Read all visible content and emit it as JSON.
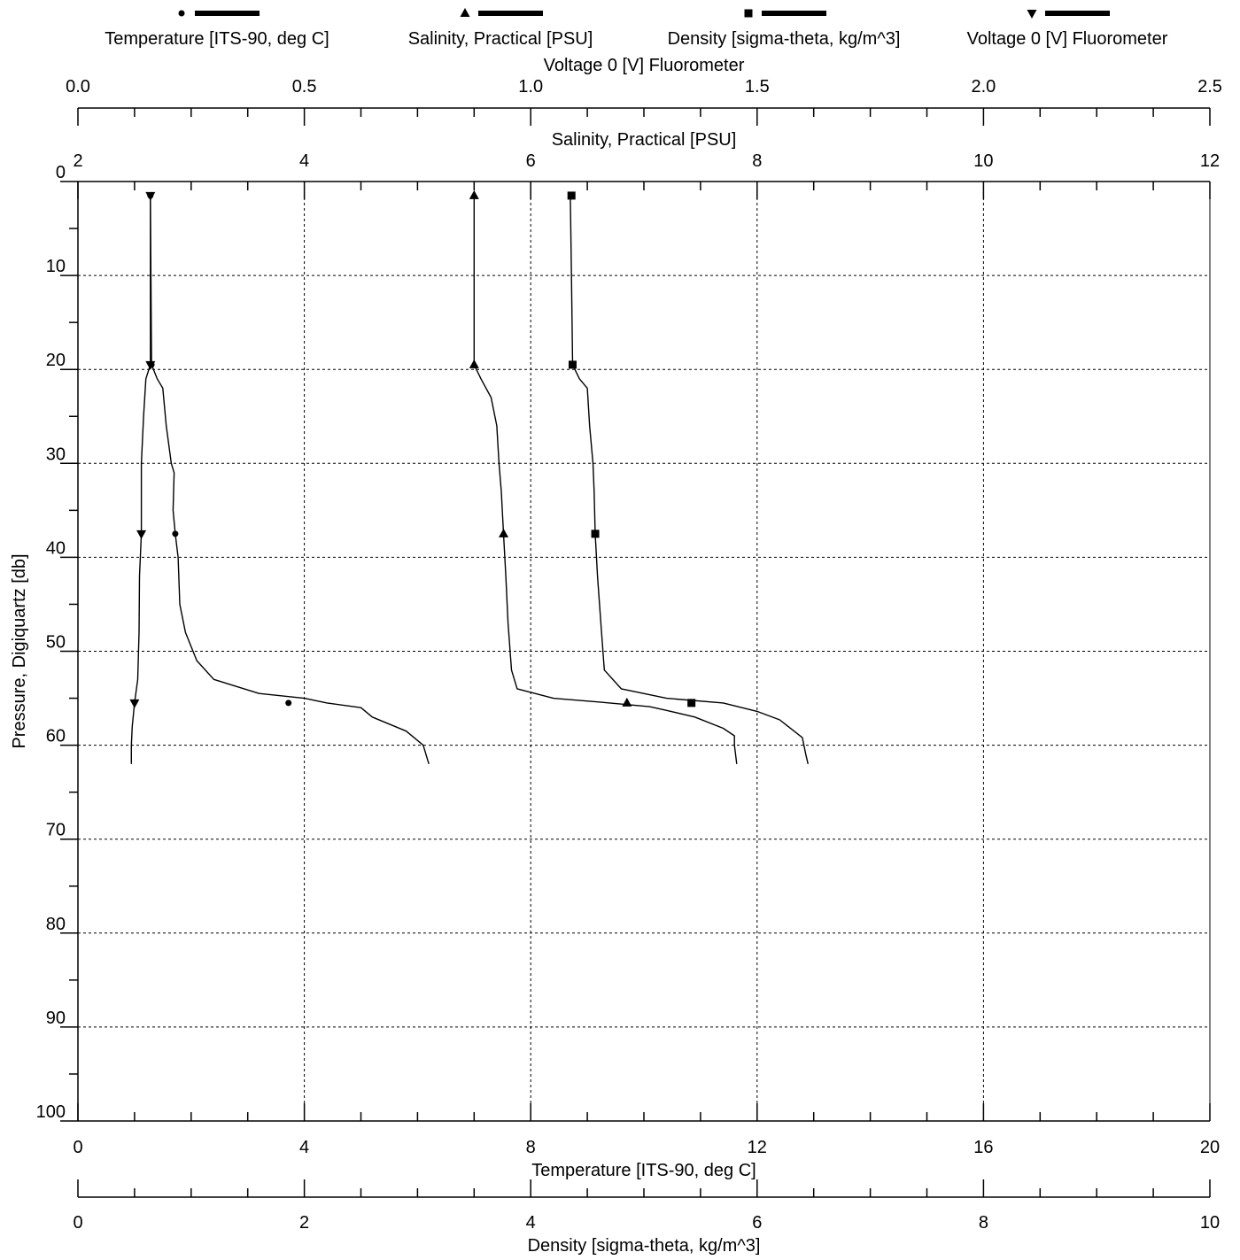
{
  "chart_data": {
    "type": "line",
    "legend_placement": "top",
    "grid": true,
    "y_axis": {
      "label": "Pressure, Digiquartz [db]",
      "range": [
        0,
        100
      ],
      "inverted": true,
      "ticks": [
        "0",
        "10",
        "20",
        "30",
        "40",
        "50",
        "60",
        "70",
        "80",
        "90",
        "100"
      ]
    },
    "x_axes": [
      {
        "id": "fluor",
        "label": "Voltage 0 [V] Fluorometer",
        "position": "top",
        "range": [
          0,
          2.5
        ],
        "ticks": [
          "0.0",
          "0.5",
          "1.0",
          "1.5",
          "2.0",
          "2.5"
        ]
      },
      {
        "id": "sal",
        "label": "Salinity, Practical [PSU]",
        "position": "top",
        "range": [
          2,
          12
        ],
        "ticks": [
          "2",
          "4",
          "6",
          "8",
          "10",
          "12"
        ]
      },
      {
        "id": "temp",
        "label": "Temperature [ITS-90, deg C]",
        "position": "bottom",
        "range": [
          0,
          20
        ],
        "ticks": [
          "0",
          "4",
          "8",
          "12",
          "16",
          "20"
        ]
      },
      {
        "id": "dens",
        "label": "Density [sigma-theta, kg/m^3]",
        "position": "bottom",
        "range": [
          0,
          10
        ],
        "ticks": [
          "0",
          "2",
          "4",
          "6",
          "8",
          "10"
        ]
      }
    ],
    "series": [
      {
        "name": "Temperature [ITS-90, deg C]",
        "axis": "temp",
        "marker": "circle",
        "points": [
          [
            1.28,
            1.5
          ],
          [
            1.29,
            10
          ],
          [
            1.3,
            19.5
          ],
          [
            1.4,
            21
          ],
          [
            1.5,
            22
          ],
          [
            1.56,
            26
          ],
          [
            1.65,
            30
          ],
          [
            1.7,
            31
          ],
          [
            1.68,
            35
          ],
          [
            1.72,
            37.5
          ],
          [
            1.77,
            40
          ],
          [
            1.8,
            45
          ],
          [
            1.9,
            48
          ],
          [
            2.1,
            51
          ],
          [
            2.4,
            53
          ],
          [
            3.2,
            54.5
          ],
          [
            4.0,
            55
          ],
          [
            4.4,
            55.5
          ],
          [
            5.0,
            56
          ],
          [
            5.2,
            57
          ],
          [
            5.8,
            58.5
          ],
          [
            6.1,
            60
          ],
          [
            6.2,
            62
          ]
        ],
        "markers": [
          [
            1.28,
            1.5
          ],
          [
            1.3,
            19.5
          ],
          [
            1.72,
            37.5
          ],
          [
            3.72,
            55.5
          ]
        ]
      },
      {
        "name": "Salinity, Practical [PSU]",
        "axis": "sal",
        "marker": "triangle-up",
        "points": [
          [
            5.5,
            1.5
          ],
          [
            5.5,
            10
          ],
          [
            5.5,
            19.5
          ],
          [
            5.56,
            21
          ],
          [
            5.65,
            23
          ],
          [
            5.7,
            26
          ],
          [
            5.72,
            30
          ],
          [
            5.74,
            33
          ],
          [
            5.76,
            37.5
          ],
          [
            5.78,
            42
          ],
          [
            5.8,
            47
          ],
          [
            5.83,
            52
          ],
          [
            5.88,
            54
          ],
          [
            6.2,
            55
          ],
          [
            6.6,
            55.4
          ],
          [
            7.05,
            55.9
          ],
          [
            7.2,
            56.3
          ],
          [
            7.45,
            57
          ],
          [
            7.7,
            58.2
          ],
          [
            7.8,
            59
          ],
          [
            7.8,
            60
          ],
          [
            7.82,
            62
          ]
        ],
        "markers": [
          [
            5.5,
            1.5
          ],
          [
            5.5,
            19.5
          ],
          [
            5.76,
            37.5
          ],
          [
            6.85,
            55.5
          ]
        ]
      },
      {
        "name": "Density [sigma-theta, kg/m^3]",
        "axis": "dens",
        "marker": "square",
        "points": [
          [
            4.35,
            1.5
          ],
          [
            4.36,
            10
          ],
          [
            4.37,
            19.5
          ],
          [
            4.43,
            21
          ],
          [
            4.5,
            22
          ],
          [
            4.52,
            26
          ],
          [
            4.55,
            30
          ],
          [
            4.56,
            33
          ],
          [
            4.57,
            37.5
          ],
          [
            4.59,
            42
          ],
          [
            4.62,
            47
          ],
          [
            4.65,
            52
          ],
          [
            4.8,
            54
          ],
          [
            5.2,
            55
          ],
          [
            5.7,
            55.5
          ],
          [
            6.0,
            56.4
          ],
          [
            6.2,
            57.3
          ],
          [
            6.4,
            59.2
          ],
          [
            6.43,
            61
          ],
          [
            6.45,
            62
          ]
        ],
        "markers": [
          [
            4.36,
            1.5
          ],
          [
            4.37,
            19.5
          ],
          [
            4.57,
            37.5
          ],
          [
            5.42,
            55.5
          ]
        ]
      },
      {
        "name": "Voltage 0 [V] Fluorometer",
        "axis": "fluor",
        "marker": "triangle-down",
        "points": [
          [
            0.16,
            1.5
          ],
          [
            0.16,
            10
          ],
          [
            0.16,
            19.5
          ],
          [
            0.15,
            21
          ],
          [
            0.145,
            25
          ],
          [
            0.14,
            30
          ],
          [
            0.14,
            34
          ],
          [
            0.14,
            37.5
          ],
          [
            0.136,
            42
          ],
          [
            0.135,
            48
          ],
          [
            0.132,
            53
          ],
          [
            0.125,
            55.5
          ],
          [
            0.12,
            58
          ],
          [
            0.118,
            60
          ],
          [
            0.118,
            62
          ]
        ],
        "markers": [
          [
            0.16,
            1.5
          ],
          [
            0.16,
            19.5
          ],
          [
            0.14,
            37.5
          ],
          [
            0.125,
            55.5
          ]
        ]
      }
    ]
  }
}
